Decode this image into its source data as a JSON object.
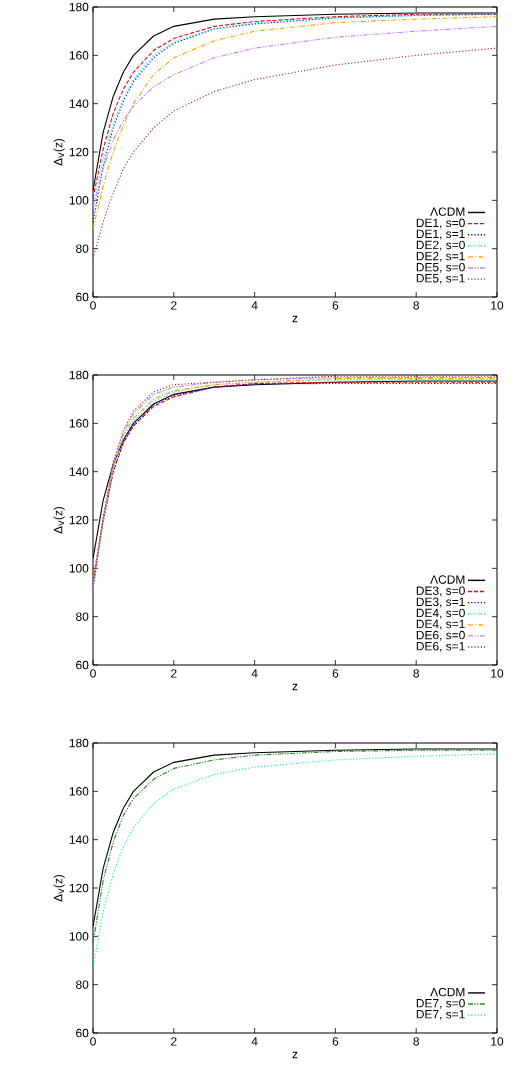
{
  "chart_data": [
    {
      "type": "line",
      "xlabel": "z",
      "ylabel": "Δ$_{V}$(z)",
      "xlim": [
        0,
        10
      ],
      "ylim": [
        60,
        180
      ],
      "xticks": [
        0,
        2,
        4,
        6,
        8,
        10
      ],
      "yticks": [
        60,
        80,
        100,
        120,
        140,
        160,
        180
      ],
      "legend": "bottom right",
      "marker": "none",
      "x": [
        0,
        0.25,
        0.5,
        0.75,
        1,
        1.5,
        2,
        3,
        4,
        6,
        8,
        10
      ],
      "series": [
        {
          "name": "ΛCDM",
          "color": "#000000",
          "line_style": "solid",
          "values": [
            104,
            128,
            143,
            153,
            160,
            168,
            172,
            175,
            176,
            177,
            177.5,
            177.5
          ]
        },
        {
          "name": "DE1, s=0",
          "color": "#ff0000",
          "line_style": "dashed",
          "values": [
            101,
            121,
            136,
            146,
            153,
            162,
            167,
            172,
            174,
            176,
            177,
            177
          ]
        },
        {
          "name": "DE1, s=1",
          "color": "#0000ff",
          "line_style": "dotted",
          "values": [
            91,
            114,
            130,
            141,
            149,
            159,
            165,
            171,
            173,
            175.5,
            176.5,
            177
          ]
        },
        {
          "name": "DE2, s=0",
          "color": "#00ffff",
          "line_style": "dotted",
          "values": [
            98,
            117,
            132,
            142,
            150,
            160,
            165.5,
            171,
            173.5,
            175.5,
            176.5,
            177
          ]
        },
        {
          "name": "DE2, s=1",
          "color": "#ffa500",
          "line_style": "dashdot",
          "values": [
            88,
            106,
            120,
            131,
            140,
            152,
            159,
            166,
            170,
            173.5,
            175,
            176
          ]
        },
        {
          "name": "DE5, s=0",
          "color": "#c080ff",
          "line_style": "dashdotdot",
          "values": [
            97,
            113,
            125,
            133,
            139,
            147,
            152,
            159,
            163,
            167.5,
            170,
            172
          ]
        },
        {
          "name": "DE5, s=1",
          "color": "#a52a2a",
          "line_style": "dotted",
          "values": [
            76,
            91,
            103,
            113,
            120,
            130,
            137,
            145,
            150,
            156,
            160,
            163
          ]
        }
      ]
    },
    {
      "type": "line",
      "xlabel": "z",
      "ylabel": "Δ$_{V}$(z)",
      "xlim": [
        0,
        10
      ],
      "ylim": [
        60,
        180
      ],
      "xticks": [
        0,
        2,
        4,
        6,
        8,
        10
      ],
      "yticks": [
        60,
        80,
        100,
        120,
        140,
        160,
        180
      ],
      "legend": "bottom right",
      "marker": "none",
      "x": [
        0,
        0.25,
        0.5,
        0.75,
        1,
        1.5,
        2,
        3,
        4,
        6,
        8,
        10
      ],
      "series": [
        {
          "name": "ΛCDM",
          "color": "#000000",
          "line_style": "solid",
          "values": [
            104,
            128,
            143,
            153,
            160,
            168,
            172,
            175,
            176,
            177,
            177.5,
            177.5
          ]
        },
        {
          "name": "DE3, s=0",
          "color": "#ff0000",
          "line_style": "dashed",
          "values": [
            95,
            120,
            140,
            152,
            159,
            167,
            171,
            175,
            176.5,
            177,
            177,
            177
          ]
        },
        {
          "name": "DE3, s=1",
          "color": "#0000ff",
          "line_style": "dotted",
          "values": [
            93,
            119,
            140,
            152,
            159,
            167.5,
            171.5,
            175,
            176.3,
            176.5,
            176.5,
            176.5
          ]
        },
        {
          "name": "DE4, s=0",
          "color": "#00ffff",
          "line_style": "dotted",
          "values": [
            94,
            120,
            141,
            154,
            161,
            169,
            173,
            176,
            177,
            178,
            178,
            178
          ]
        },
        {
          "name": "DE4, s=1",
          "color": "#ffa500",
          "line_style": "dashdot",
          "values": [
            93,
            120,
            142,
            155,
            162,
            170,
            173.5,
            176,
            177,
            178.5,
            178.5,
            178.5
          ]
        },
        {
          "name": "DE6, s=0",
          "color": "#c080ff",
          "line_style": "dashdotdot",
          "values": [
            91,
            120,
            143,
            156,
            164,
            172,
            175,
            177,
            178,
            179,
            179,
            179
          ]
        },
        {
          "name": "DE6, s=1",
          "color": "#a52a2a",
          "line_style": "dotted",
          "values": [
            92,
            121,
            144,
            157,
            165,
            173,
            176,
            177,
            178,
            179.5,
            179.5,
            179.5
          ]
        }
      ]
    },
    {
      "type": "line",
      "xlabel": "z",
      "ylabel": "Δ$_{V}$(z)",
      "xlim": [
        0,
        10
      ],
      "ylim": [
        60,
        180
      ],
      "xticks": [
        0,
        2,
        4,
        6,
        8,
        10
      ],
      "yticks": [
        60,
        80,
        100,
        120,
        140,
        160,
        180
      ],
      "legend": "bottom right",
      "marker": "none",
      "x": [
        0,
        0.25,
        0.5,
        0.75,
        1,
        1.5,
        2,
        3,
        4,
        6,
        8,
        10
      ],
      "series": [
        {
          "name": "ΛCDM",
          "color": "#000000",
          "line_style": "solid",
          "values": [
            104,
            128,
            143,
            153,
            160,
            168,
            172,
            175,
            176,
            177,
            177.5,
            177.5
          ]
        },
        {
          "name": "DE7, s=0",
          "color": "#228b22",
          "line_style": "dashdotdot",
          "values": [
            97,
            123,
            139,
            150,
            157,
            165,
            169.5,
            173,
            175,
            176.5,
            177,
            177
          ]
        },
        {
          "name": "DE7, s=1",
          "color": "#00ff7f",
          "line_style": "dotted",
          "values": [
            87,
            110,
            126,
            137,
            145,
            155,
            161,
            167,
            170,
            173,
            174.5,
            175.5
          ]
        }
      ]
    }
  ]
}
